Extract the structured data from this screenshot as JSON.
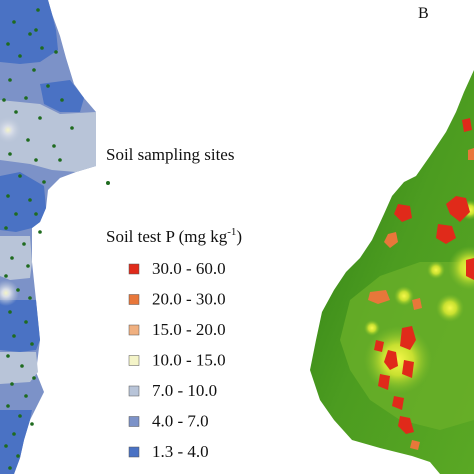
{
  "panel_b": {
    "label": "B"
  },
  "legend": {
    "sampling_title": "Soil sampling sites",
    "sampling_marker_color": "#1f6b1f",
    "title_prefix": "Soil test P (mg kg",
    "title_superscript": "-1",
    "title_suffix": ")",
    "classes": [
      {
        "label": "30.0 - 60.0",
        "color": "#e02a1a"
      },
      {
        "label": "20.0 - 30.0",
        "color": "#e8773a"
      },
      {
        "label": "15.0 - 20.0",
        "color": "#f0b080"
      },
      {
        "label": "10.0 - 15.0",
        "color": "#f4f4c8"
      },
      {
        "label": "7.0 - 10.0",
        "color": "#b8c4d8"
      },
      {
        "label": "4.0 - 7.0",
        "color": "#7c92c8"
      },
      {
        "label": "1.3 - 4.0",
        "color": "#4a72c4"
      }
    ]
  },
  "map_a": {
    "fill_low": "#4a72c4",
    "fill_mid": "#7c92c8",
    "fill_high": "#b8c4d8",
    "hotspot": "#f4f4c8"
  },
  "map_b": {
    "green_dark": "#3c8c1c",
    "green_mid": "#6bb02a",
    "yellow": "#e8f03a",
    "red": "#e02a1a",
    "orange": "#e8773a"
  }
}
